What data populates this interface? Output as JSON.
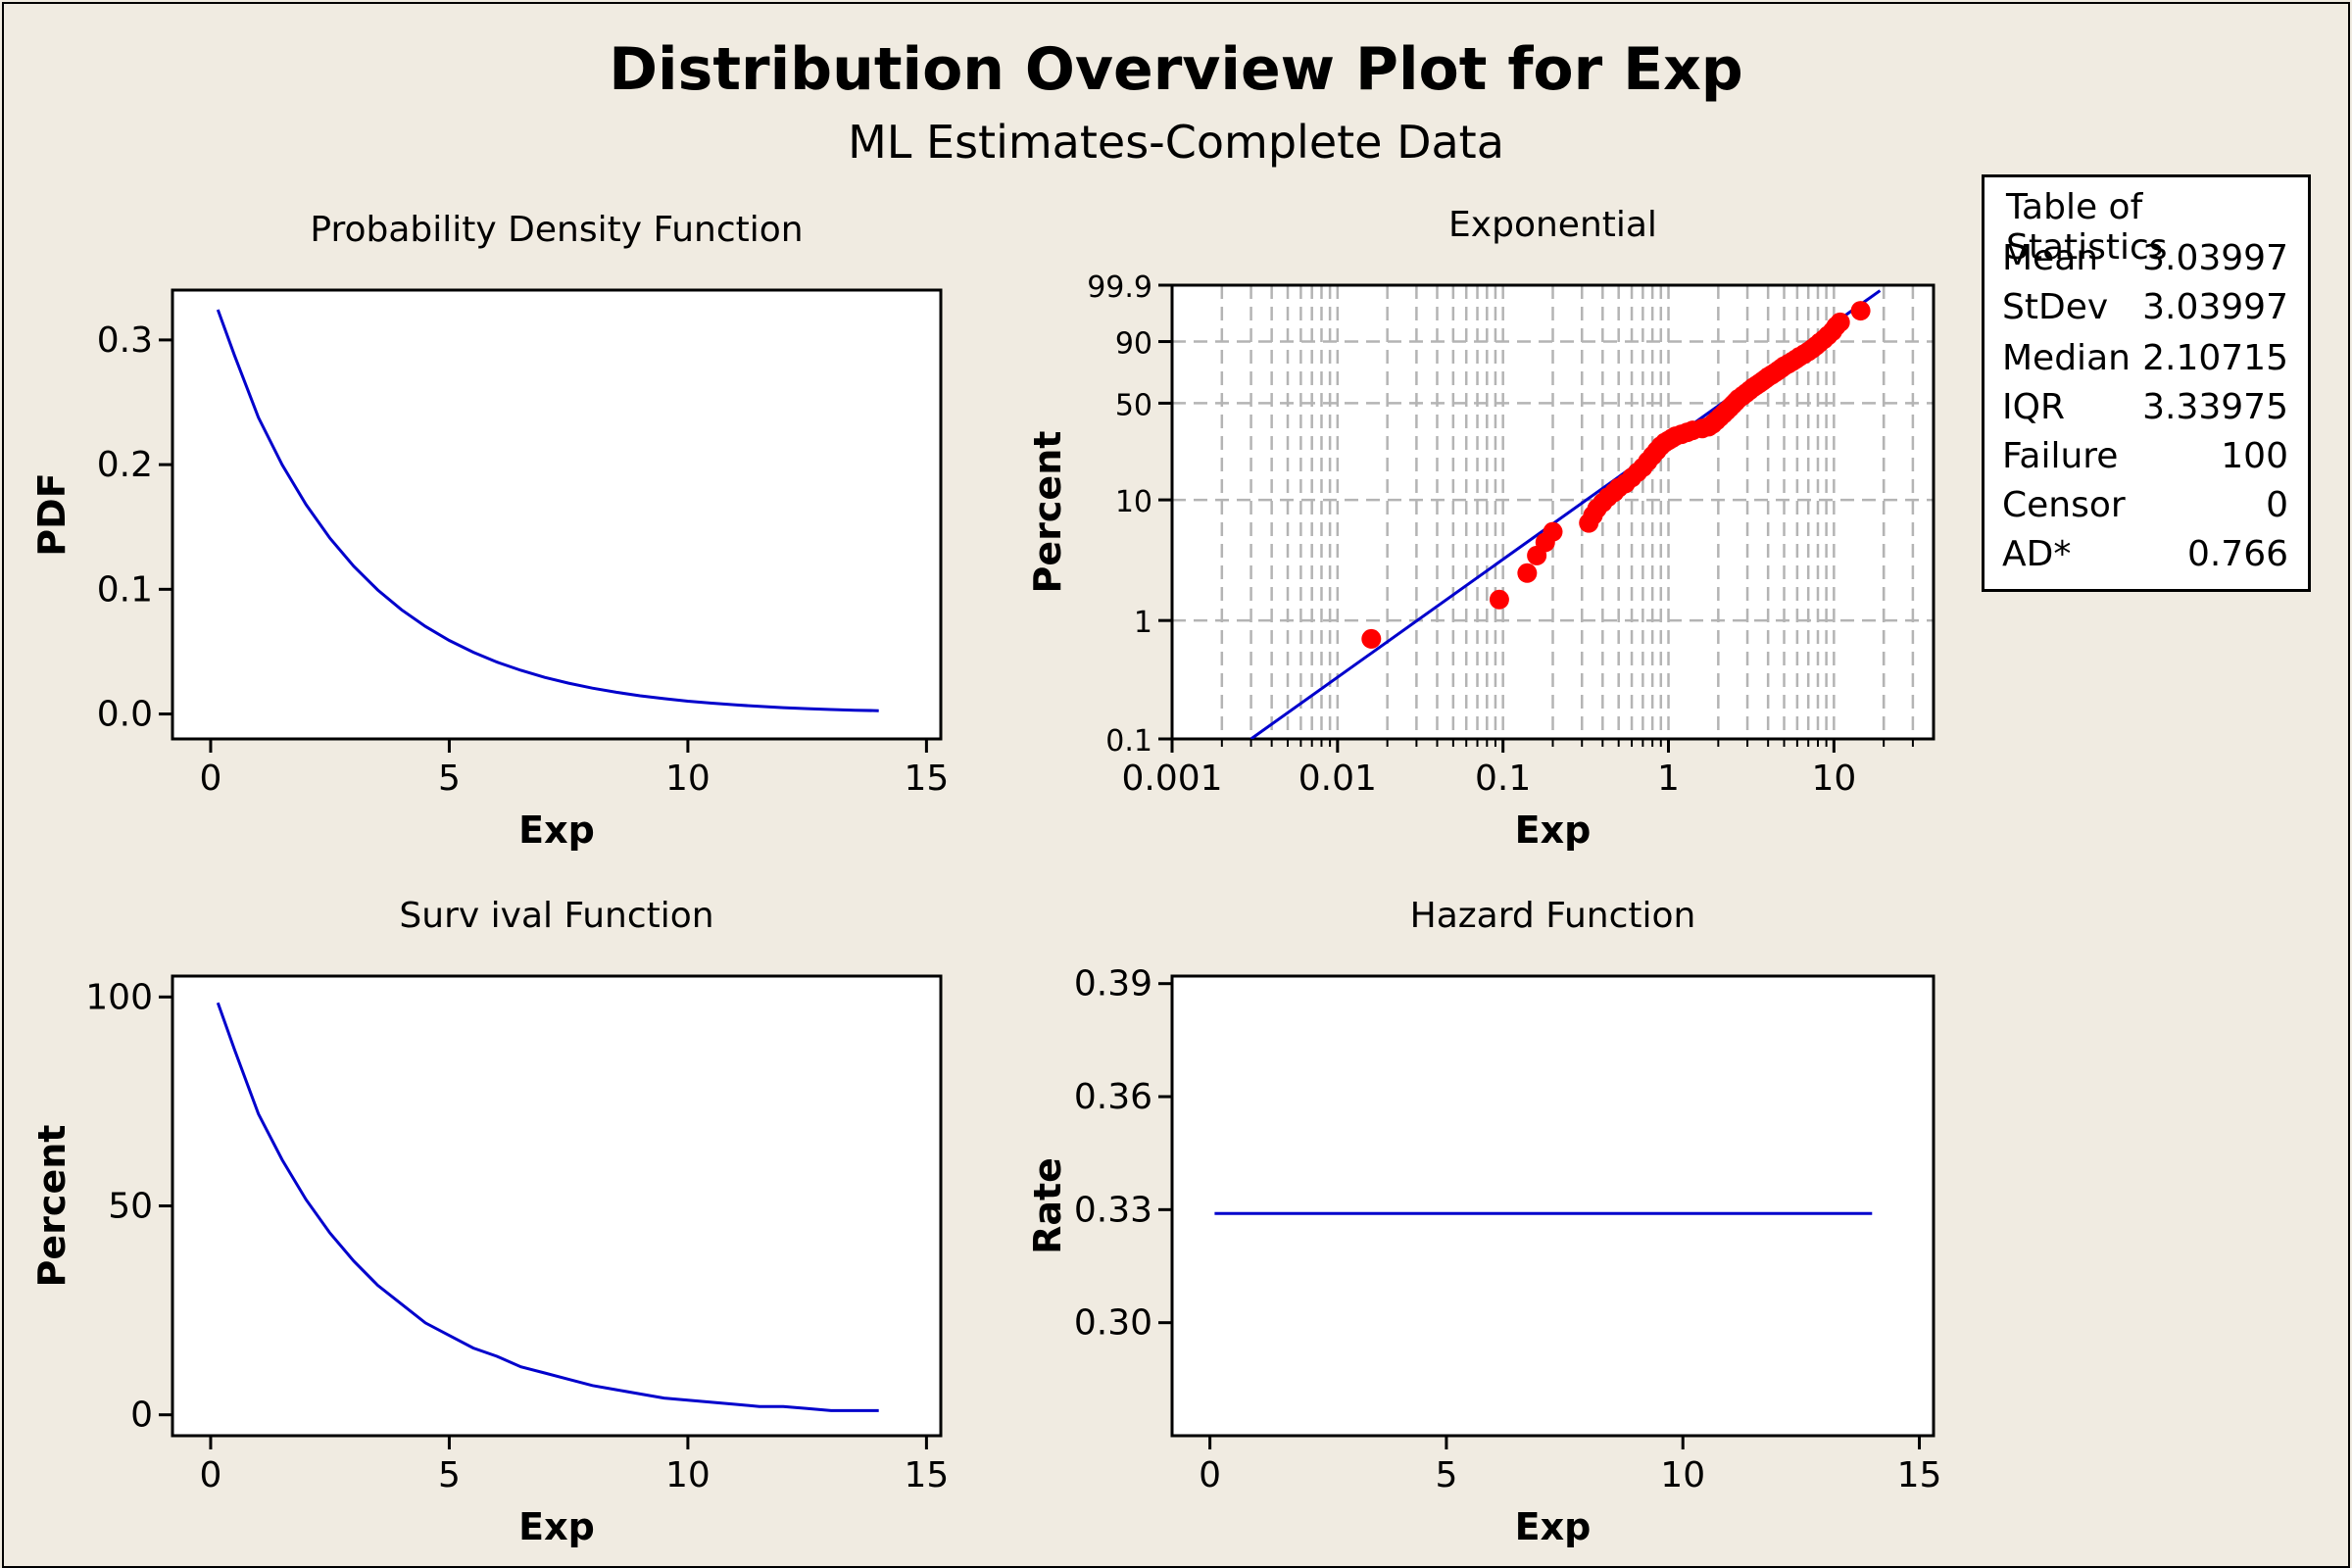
{
  "title": "Distribution Overview Plot for Exp",
  "subtitle": "ML Estimates-Complete Data",
  "colors": {
    "line": "#0000cc",
    "points": "#ff0000",
    "background": "#f0ebe1",
    "grid": "#b4b4b4"
  },
  "stats": {
    "header": "Table of Statistics",
    "rows": [
      {
        "label": "Mean",
        "value": "3.03997"
      },
      {
        "label": "StDev",
        "value": "3.03997"
      },
      {
        "label": "Median",
        "value": "2.10715"
      },
      {
        "label": "IQR",
        "value": "3.33975"
      },
      {
        "label": "Failure",
        "value": "100"
      },
      {
        "label": "Censor",
        "value": "0"
      },
      {
        "label": "AD*",
        "value": "0.766"
      }
    ]
  },
  "chart_data": [
    {
      "id": "pdf",
      "type": "line",
      "title": "Probability Density Function",
      "xlabel": "Exp",
      "ylabel": "PDF",
      "xlim": [
        -0.8,
        15.3
      ],
      "ylim": [
        -0.02,
        0.34
      ],
      "xticks": [
        0,
        5,
        10,
        15
      ],
      "yticks": [
        0.0,
        0.1,
        0.2,
        0.3
      ],
      "ytick_labels": [
        "0.0",
        "0.1",
        "0.2",
        "0.3"
      ],
      "x": [
        0.15,
        0.5,
        1,
        1.5,
        2,
        2.5,
        3,
        3.5,
        4,
        4.5,
        5,
        5.5,
        6,
        6.5,
        7,
        7.5,
        8,
        8.5,
        9,
        9.5,
        10,
        10.5,
        11,
        11.5,
        12,
        12.5,
        13,
        13.5,
        14
      ],
      "y": [
        0.3243,
        0.2876,
        0.2378,
        0.1998,
        0.1679,
        0.141,
        0.1185,
        0.0995,
        0.0836,
        0.0702,
        0.059,
        0.0496,
        0.0416,
        0.035,
        0.0294,
        0.0247,
        0.0207,
        0.0174,
        0.0146,
        0.0123,
        0.0103,
        0.0087,
        0.0073,
        0.0061,
        0.0051,
        0.0043,
        0.0036,
        0.003,
        0.0026
      ]
    },
    {
      "id": "prob",
      "type": "scatter",
      "title": "Exponential",
      "xlabel": "Exp",
      "ylabel": "Percent",
      "x_scale": "log",
      "y_scale": "exponential-probability",
      "grid": true,
      "xlim": [
        0.001,
        40
      ],
      "ylim": [
        0.1,
        99.9
      ],
      "xticks": [
        0.001,
        0.01,
        0.1,
        1,
        10
      ],
      "xtick_labels": [
        "0.001",
        "0.01",
        "0.1",
        "1",
        "10"
      ],
      "yticks": [
        0.1,
        1,
        10,
        50,
        90,
        99.9
      ],
      "ytick_labels": [
        "0.1",
        "1",
        "10",
        "50",
        "90",
        "99.9"
      ],
      "fit_line": {
        "x": [
          0.003,
          19
        ],
        "y": [
          0.1,
          99.8
        ]
      },
      "points": {
        "x": [
          0.016,
          0.095,
          0.14,
          0.16,
          0.18,
          0.2,
          0.33,
          0.35,
          0.37,
          0.4,
          0.43,
          0.47,
          0.5,
          0.55,
          0.6,
          0.65,
          0.7,
          0.75,
          0.8,
          0.85,
          0.9,
          0.95,
          1.0,
          1.05,
          1.1,
          1.2,
          1.3,
          1.4,
          1.6,
          1.75,
          1.85,
          1.95,
          2.05,
          2.15,
          2.25,
          2.35,
          2.45,
          2.55,
          2.65,
          2.8,
          2.95,
          3.1,
          3.25,
          3.4,
          3.55,
          3.7,
          3.85,
          4.0,
          4.2,
          4.4,
          4.6,
          4.8,
          5.0,
          5.3,
          5.6,
          5.9,
          6.2,
          6.6,
          7.0,
          7.4,
          7.8,
          8.2,
          8.7,
          9.2,
          9.8,
          10.3,
          10.9,
          14.5
        ],
        "y": [
          0.7,
          1.5,
          2.5,
          3.5,
          4.5,
          5.5,
          6.5,
          7.5,
          8.5,
          9.5,
          10.5,
          11.5,
          12.5,
          13.5,
          15,
          16.5,
          18,
          20,
          22,
          24,
          26,
          27.5,
          28.5,
          29.5,
          30.5,
          31.5,
          32.5,
          33.5,
          34.5,
          35.5,
          37,
          39,
          41,
          43,
          45,
          47,
          49,
          51,
          53,
          55,
          57,
          59,
          61,
          62.5,
          64,
          65.5,
          67,
          68.5,
          70,
          71.5,
          73,
          74.5,
          76,
          77.5,
          79,
          80.5,
          82,
          83.5,
          85,
          86.5,
          88,
          89.5,
          91,
          92.5,
          94,
          95.5,
          96.5,
          98.5
        ]
      }
    },
    {
      "id": "surv",
      "type": "line",
      "title": "Surv ival Function",
      "xlabel": "Exp",
      "ylabel": "Percent",
      "xlim": [
        -0.8,
        15.3
      ],
      "ylim": [
        -5,
        105
      ],
      "xticks": [
        0,
        5,
        10,
        15
      ],
      "yticks": [
        0,
        50,
        100
      ],
      "ytick_labels": [
        "0",
        "50",
        "100"
      ],
      "x": [
        0.15,
        0.5,
        1,
        1.5,
        2,
        2.5,
        3,
        3.5,
        4,
        4.5,
        5,
        5.5,
        6,
        6.5,
        7,
        7.5,
        8,
        8.5,
        9,
        9.5,
        10,
        10.5,
        11,
        11.5,
        12,
        12.5,
        13,
        13.5,
        14
      ],
      "y": [
        98.6,
        87.4,
        72.0,
        61.0,
        51.5,
        43.5,
        36.8,
        31.0,
        26.5,
        22.0,
        19.0,
        16.0,
        14.0,
        11.5,
        10.0,
        8.5,
        7.0,
        6.0,
        5.0,
        4.0,
        3.5,
        3.0,
        2.5,
        2.0,
        2.0,
        1.5,
        1.0,
        1.0,
        1.0
      ]
    },
    {
      "id": "haz",
      "type": "line",
      "title": "Hazard Function",
      "xlabel": "Exp",
      "ylabel": "Rate",
      "xlim": [
        -0.8,
        15.3
      ],
      "ylim": [
        0.27,
        0.392
      ],
      "xticks": [
        0,
        5,
        10,
        15
      ],
      "yticks": [
        0.3,
        0.33,
        0.36,
        0.39
      ],
      "ytick_labels": [
        "0.30",
        "0.33",
        "0.36",
        "0.39"
      ],
      "x": [
        0.1,
        14
      ],
      "y": [
        0.329,
        0.329
      ]
    }
  ]
}
